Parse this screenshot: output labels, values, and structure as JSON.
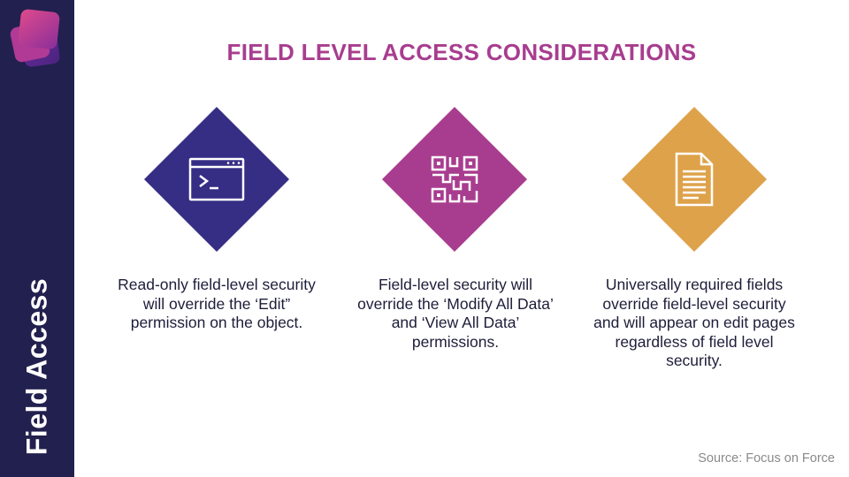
{
  "slide": {
    "title": "FIELD LEVEL ACCESS CONSIDERATIONS",
    "sidebar_label": "Field Access",
    "source": "Source: Focus on Force"
  },
  "cards": [
    {
      "icon": "terminal-window-icon",
      "color": "#362d85",
      "text": "Read-only field-level security will override the ‘Edit” permission on the object."
    },
    {
      "icon": "qr-code-icon",
      "color": "#a83d8f",
      "text": "Field-level security will override the ‘Modify All Data’ and ‘View All Data’ permissions."
    },
    {
      "icon": "document-icon",
      "color": "#dea24a",
      "text": "Universally required fields override field-level security and will appear on edit pages regardless of field level security."
    }
  ],
  "colors": {
    "sidebar": "#22204e",
    "title": "#a83d8f",
    "logo_back": "#7a2f8f",
    "logo_front": "#c23c8f"
  }
}
